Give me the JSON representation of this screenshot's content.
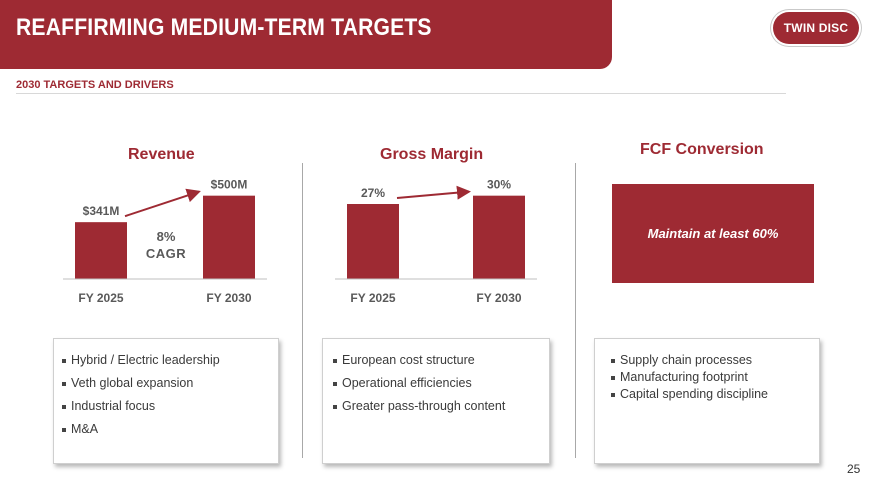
{
  "header": {
    "title": "REAFFIRMING MEDIUM-TERM TARGETS",
    "subtitle": "2030 TARGETS AND DRIVERS",
    "logo_text": "TWIN DISC",
    "brand_color": "#9e2a33"
  },
  "sections": {
    "revenue": {
      "title": "Revenue",
      "cagr_value": "8%",
      "cagr_label": "CAGR"
    },
    "gross_margin": {
      "title": "Gross Margin"
    },
    "fcf": {
      "title": "FCF Conversion",
      "target_text": "Maintain at least 60%"
    }
  },
  "chart_data": [
    {
      "type": "bar",
      "title": "Revenue",
      "categories": [
        "FY 2025",
        "FY 2030"
      ],
      "values": [
        341,
        500
      ],
      "value_labels": [
        "$341M",
        "$500M"
      ],
      "unit": "$M",
      "ylim": [
        0,
        540
      ],
      "annotation": "8% CAGR"
    },
    {
      "type": "bar",
      "title": "Gross Margin",
      "categories": [
        "FY 2025",
        "FY 2030"
      ],
      "values": [
        27,
        30
      ],
      "value_labels": [
        "27%",
        "30%"
      ],
      "unit": "%",
      "ylim": [
        0,
        32.4
      ]
    }
  ],
  "drivers": {
    "revenue": [
      "Hybrid / Electric leadership",
      "Veth global expansion",
      "Industrial focus",
      "M&A"
    ],
    "gross_margin": [
      "European cost structure",
      "Operational efficiencies",
      "Greater pass-through content"
    ],
    "fcf": [
      "Supply chain processes",
      "Manufacturing footprint",
      "Capital spending discipline"
    ]
  },
  "page_number": "25"
}
